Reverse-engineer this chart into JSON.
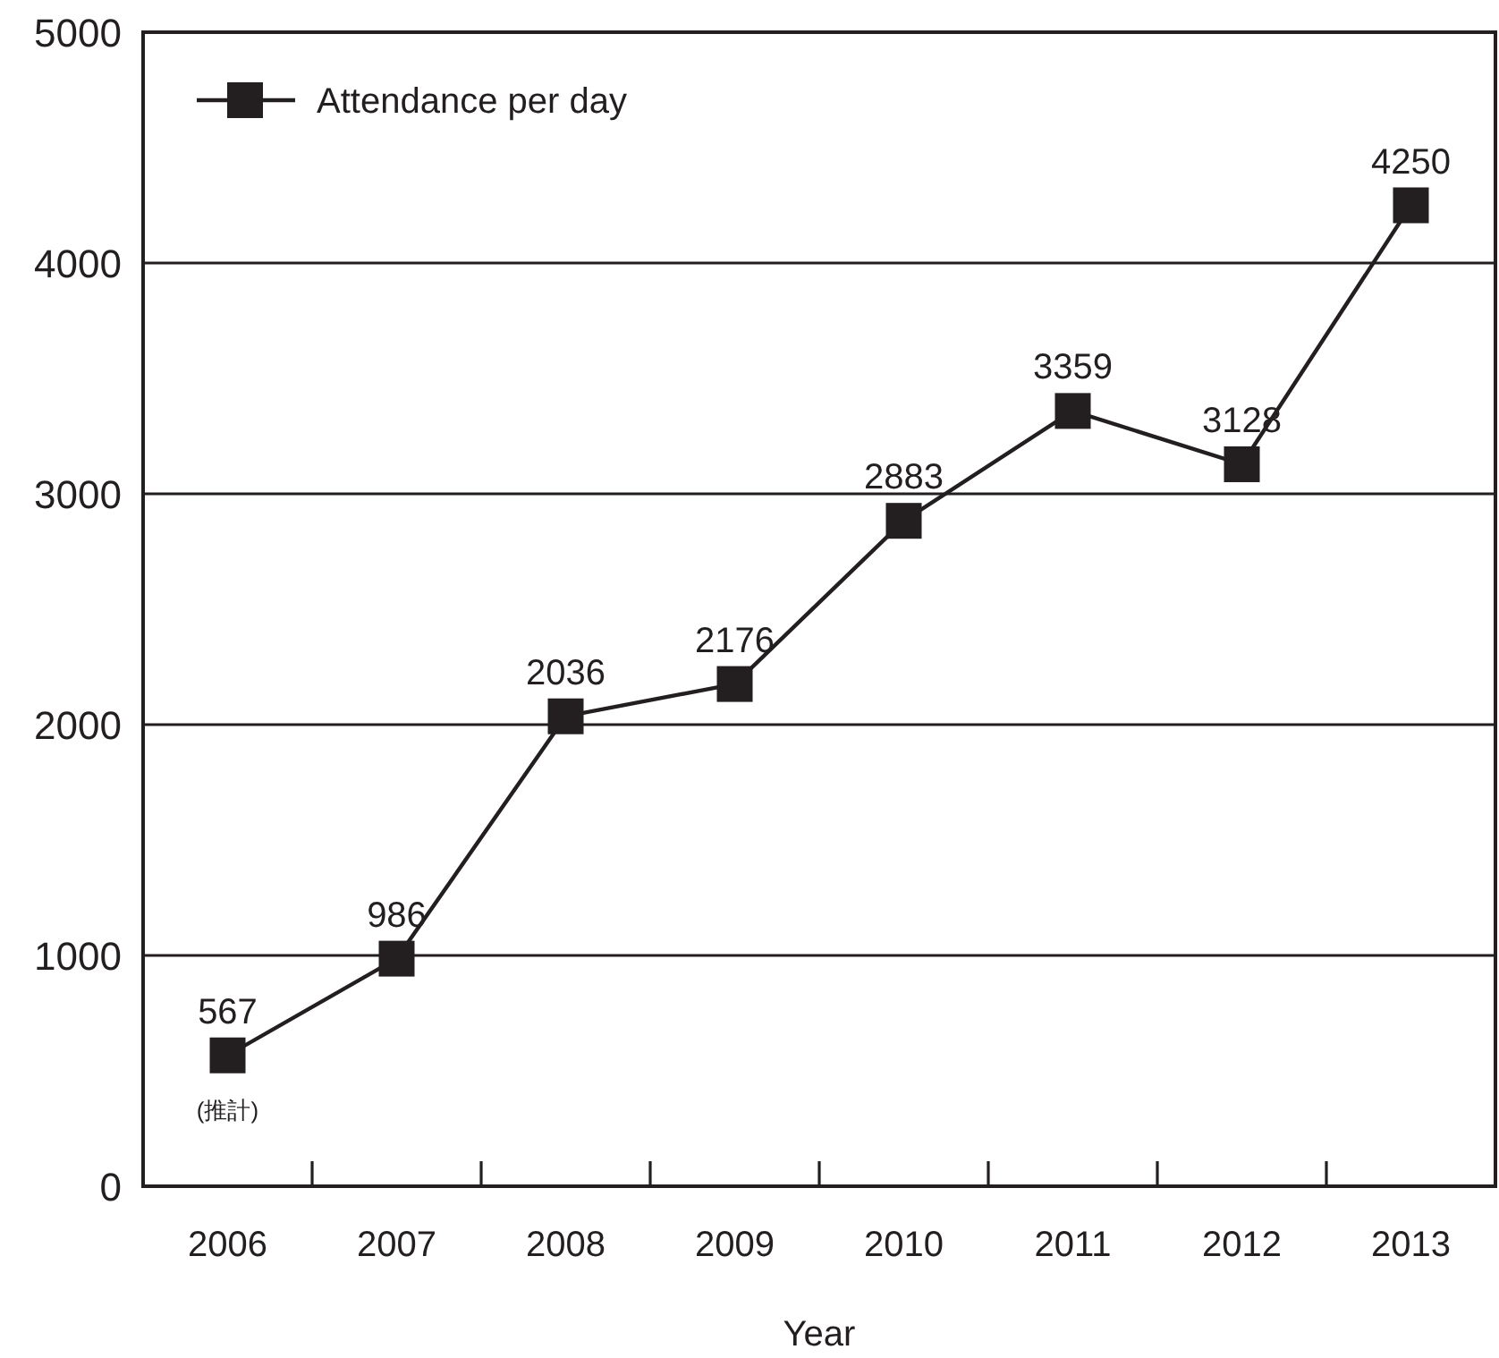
{
  "chart_data": {
    "type": "line",
    "xlabel": "Year",
    "categories": [
      "2006",
      "2007",
      "2008",
      "2009",
      "2010",
      "2011",
      "2012",
      "2013"
    ],
    "series": [
      {
        "name": "Attendance per day",
        "color": "#231f20",
        "values": [
          567,
          986,
          2036,
          2176,
          2883,
          3359,
          3128,
          4250
        ]
      }
    ],
    "ylim": [
      0,
      5000
    ],
    "yticks": [
      0,
      1000,
      2000,
      3000,
      4000,
      5000
    ],
    "grid": "y",
    "legend": "top left",
    "marker": "square",
    "line_style": "solid",
    "data_labels": true,
    "annotations": [
      {
        "text": "(推計)",
        "x": "2006",
        "y": 567
      }
    ]
  }
}
